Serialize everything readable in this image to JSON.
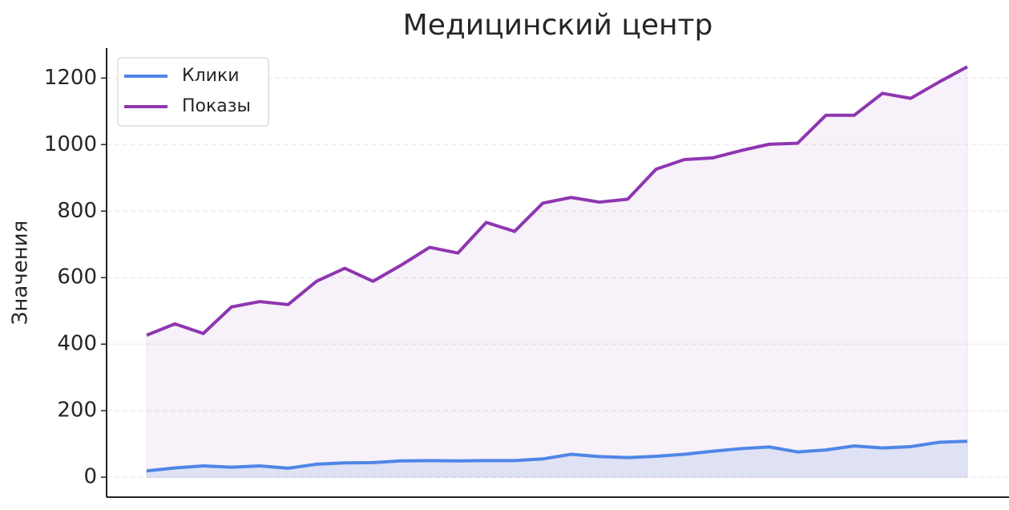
{
  "chart_data": {
    "type": "line",
    "title": "Медицинский центр",
    "y_label": "Значения",
    "categories": [
      null,
      null,
      null,
      null,
      null,
      null,
      null,
      null,
      null,
      null,
      null,
      null,
      null,
      null,
      null,
      null,
      null,
      null,
      null,
      null,
      null,
      null,
      null,
      null,
      null,
      null,
      null,
      null,
      null,
      null
    ],
    "series": [
      {
        "name": "Клики",
        "color": "#4f86e6",
        "values": [
          19,
          28,
          34,
          30,
          34,
          27,
          39,
          43,
          44,
          49,
          50,
          49,
          50,
          50,
          55,
          69,
          62,
          59,
          63,
          69,
          78,
          86,
          91,
          76,
          82,
          94,
          88,
          92,
          105,
          108
        ]
      },
      {
        "name": "Показы",
        "color": "#8e36b0",
        "values": [
          427,
          461,
          432,
          512,
          528,
          519,
          589,
          628,
          589,
          638,
          691,
          674,
          766,
          739,
          824,
          841,
          827,
          836,
          926,
          955,
          960,
          982,
          1001,
          1004,
          1088,
          1088,
          1154,
          1139,
          1188,
          1234
        ]
      }
    ],
    "ylim": [
      -60,
      1290
    ],
    "yticks": [
      0,
      200,
      400,
      600,
      800,
      1000,
      1200
    ],
    "grid": true,
    "legend": "upper left",
    "area_fill": true
  }
}
